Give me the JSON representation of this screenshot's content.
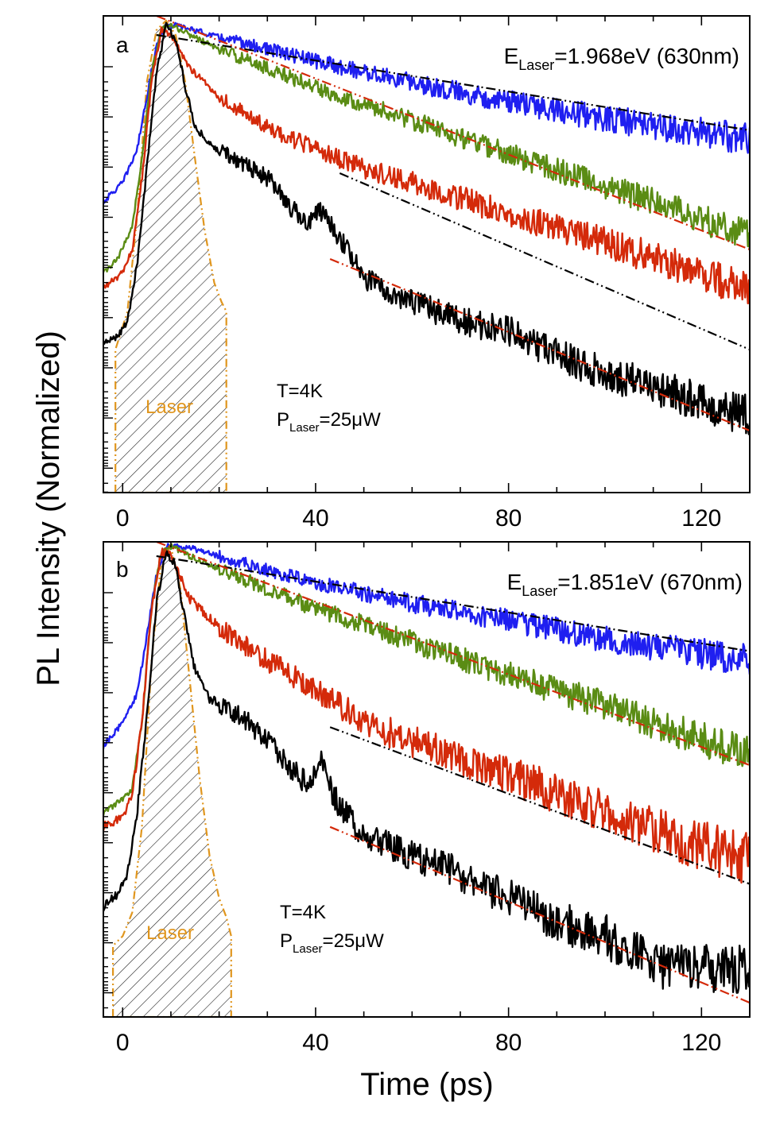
{
  "figure": {
    "ylabel": "PL Intensity (Normalized)",
    "xlabel": "Time (ps)",
    "colors": {
      "blue": "#1f1ff0",
      "green": "#5a8c14",
      "red": "#d42a0a",
      "black": "#000000",
      "laser": "#e0961e",
      "fit_black": "#000000",
      "fit_red": "#d42a0a"
    }
  },
  "chart_data": [
    {
      "type": "line",
      "panel": "a",
      "panel_label": "a",
      "energy_label": {
        "prefix": "E",
        "sub": "Laser",
        "value": "=1.968eV (630nm)"
      },
      "temp_label": "T=4K",
      "power_label": {
        "prefix": "P",
        "sub": "Laser",
        "value": "=25μW"
      },
      "laser_label": "Laser",
      "xlim": [
        -4,
        130
      ],
      "ylim": [
        0,
        1
      ],
      "y_scale": "log (normalized, unlabeled)",
      "xticks": [
        0,
        40,
        80,
        120
      ],
      "xtick_labels": [
        "0",
        "40",
        "80",
        "120"
      ],
      "series": [
        {
          "name": "blue",
          "color": "blue",
          "noise": 0.012,
          "x": [
            -4,
            0,
            3,
            5,
            7,
            9,
            11,
            15,
            20,
            30,
            40,
            60,
            80,
            100,
            120,
            130
          ],
          "y": [
            0.61,
            0.65,
            0.72,
            0.83,
            0.94,
            0.98,
            0.98,
            0.97,
            0.955,
            0.93,
            0.905,
            0.86,
            0.82,
            0.785,
            0.755,
            0.74
          ]
        },
        {
          "name": "green",
          "color": "green",
          "noise": 0.012,
          "x": [
            -4,
            -1,
            2,
            4,
            6,
            8,
            10,
            14,
            20,
            30,
            40,
            60,
            80,
            100,
            120,
            130
          ],
          "y": [
            0.46,
            0.49,
            0.56,
            0.7,
            0.88,
            0.97,
            0.98,
            0.96,
            0.93,
            0.89,
            0.85,
            0.78,
            0.71,
            0.645,
            0.575,
            0.54
          ]
        },
        {
          "name": "red",
          "color": "red",
          "noise": 0.014,
          "x": [
            -4,
            0,
            2,
            4,
            6,
            8,
            10,
            14,
            20,
            30,
            40,
            50,
            60,
            80,
            100,
            120,
            130
          ],
          "y": [
            0.43,
            0.46,
            0.51,
            0.66,
            0.86,
            0.97,
            0.96,
            0.89,
            0.83,
            0.765,
            0.72,
            0.68,
            0.65,
            0.585,
            0.525,
            0.46,
            0.42
          ]
        },
        {
          "name": "black",
          "color": "black",
          "noise": 0.016,
          "x": [
            -4,
            -1,
            1,
            3,
            5,
            7,
            9,
            11,
            13,
            15,
            18,
            25,
            30,
            38,
            41,
            44,
            50,
            60,
            70,
            80,
            90,
            100,
            110,
            120,
            130
          ],
          "y": [
            0.31,
            0.33,
            0.36,
            0.48,
            0.68,
            0.88,
            0.98,
            0.95,
            0.85,
            0.77,
            0.73,
            0.69,
            0.66,
            0.56,
            0.59,
            0.55,
            0.45,
            0.4,
            0.36,
            0.34,
            0.29,
            0.25,
            0.22,
            0.19,
            0.16
          ]
        }
      ],
      "fits": [
        {
          "color": "fit_black",
          "style": "dash-dot",
          "x": [
            7,
            130
          ],
          "y": [
            0.96,
            0.76
          ]
        },
        {
          "color": "fit_red",
          "style": "dash-dot",
          "x": [
            7,
            130
          ],
          "y": [
            1.0,
            0.51
          ]
        },
        {
          "color": "fit_black",
          "style": "dash-dot",
          "x": [
            45,
            130
          ],
          "y": [
            0.67,
            0.3
          ]
        },
        {
          "color": "fit_red",
          "style": "dash-dot",
          "x": [
            43,
            130
          ],
          "y": [
            0.49,
            0.13
          ]
        }
      ],
      "laser_pulse": {
        "x": [
          -1.5,
          -1.5,
          1,
          3,
          5,
          7,
          9,
          11,
          13,
          15,
          17,
          19,
          20.5,
          21.5,
          21.5
        ],
        "y": [
          0.0,
          0.3,
          0.38,
          0.58,
          0.86,
          0.97,
          0.99,
          0.96,
          0.86,
          0.7,
          0.55,
          0.44,
          0.4,
          0.38,
          0.0
        ]
      }
    },
    {
      "type": "line",
      "panel": "b",
      "panel_label": "b",
      "energy_label": {
        "prefix": "E",
        "sub": "Laser",
        "value": "=1.851eV (670nm)"
      },
      "temp_label": "T=4K",
      "power_label": {
        "prefix": "P",
        "sub": "Laser",
        "value": "=25μW"
      },
      "laser_label": "Laser",
      "xlim": [
        -4,
        130
      ],
      "ylim": [
        0,
        1
      ],
      "y_scale": "log (normalized, unlabeled)",
      "xticks": [
        0,
        40,
        80,
        120
      ],
      "xtick_labels": [
        "0",
        "40",
        "80",
        "120"
      ],
      "series": [
        {
          "name": "blue",
          "color": "blue",
          "noise": 0.012,
          "x": [
            -4,
            0,
            3,
            5,
            7,
            9,
            11,
            15,
            20,
            30,
            40,
            60,
            80,
            100,
            120,
            130
          ],
          "y": [
            0.57,
            0.62,
            0.68,
            0.8,
            0.93,
            0.99,
            0.99,
            0.985,
            0.97,
            0.94,
            0.915,
            0.87,
            0.835,
            0.795,
            0.765,
            0.75
          ]
        },
        {
          "name": "green",
          "color": "green",
          "noise": 0.014,
          "x": [
            -4,
            -1,
            2,
            4,
            6,
            8,
            10,
            14,
            20,
            30,
            40,
            60,
            80,
            100,
            120,
            130
          ],
          "y": [
            0.43,
            0.45,
            0.48,
            0.62,
            0.86,
            0.98,
            0.99,
            0.97,
            0.945,
            0.9,
            0.86,
            0.79,
            0.72,
            0.655,
            0.585,
            0.55
          ]
        },
        {
          "name": "red",
          "color": "red",
          "noise": 0.02,
          "x": [
            -4,
            0,
            2,
            4,
            6,
            8,
            10,
            14,
            20,
            30,
            40,
            50,
            60,
            80,
            100,
            120,
            130
          ],
          "y": [
            0.4,
            0.42,
            0.47,
            0.62,
            0.86,
            0.98,
            0.97,
            0.88,
            0.82,
            0.75,
            0.69,
            0.62,
            0.58,
            0.51,
            0.43,
            0.36,
            0.33
          ]
        },
        {
          "name": "black",
          "color": "black",
          "noise": 0.02,
          "x": [
            -4,
            -1,
            1,
            3,
            5,
            7,
            9,
            11,
            13,
            15,
            18,
            25,
            30,
            38,
            41,
            44,
            50,
            60,
            70,
            80,
            90,
            100,
            110,
            120,
            130
          ],
          "y": [
            0.23,
            0.26,
            0.3,
            0.43,
            0.63,
            0.87,
            0.98,
            0.95,
            0.83,
            0.73,
            0.67,
            0.63,
            0.58,
            0.49,
            0.54,
            0.46,
            0.38,
            0.34,
            0.3,
            0.25,
            0.2,
            0.17,
            0.11,
            0.1,
            0.1
          ]
        }
      ],
      "fits": [
        {
          "color": "fit_black",
          "style": "dash-dot",
          "x": [
            7,
            130
          ],
          "y": [
            0.97,
            0.77
          ]
        },
        {
          "color": "fit_red",
          "style": "dash-dot",
          "x": [
            7,
            130
          ],
          "y": [
            1.0,
            0.53
          ]
        },
        {
          "color": "fit_black",
          "style": "dash-dot",
          "x": [
            43,
            130
          ],
          "y": [
            0.61,
            0.28
          ]
        },
        {
          "color": "fit_red",
          "style": "dash-dot",
          "x": [
            43,
            130
          ],
          "y": [
            0.4,
            0.03
          ]
        }
      ],
      "laser_pulse": {
        "x": [
          -2,
          -2,
          0,
          2,
          4,
          6,
          8,
          10,
          12,
          14,
          16,
          18,
          20,
          21.5,
          22.5,
          22.5
        ],
        "y": [
          0.0,
          0.15,
          0.17,
          0.22,
          0.4,
          0.75,
          0.96,
          0.99,
          0.9,
          0.7,
          0.5,
          0.34,
          0.25,
          0.21,
          0.17,
          0.0
        ]
      }
    }
  ]
}
